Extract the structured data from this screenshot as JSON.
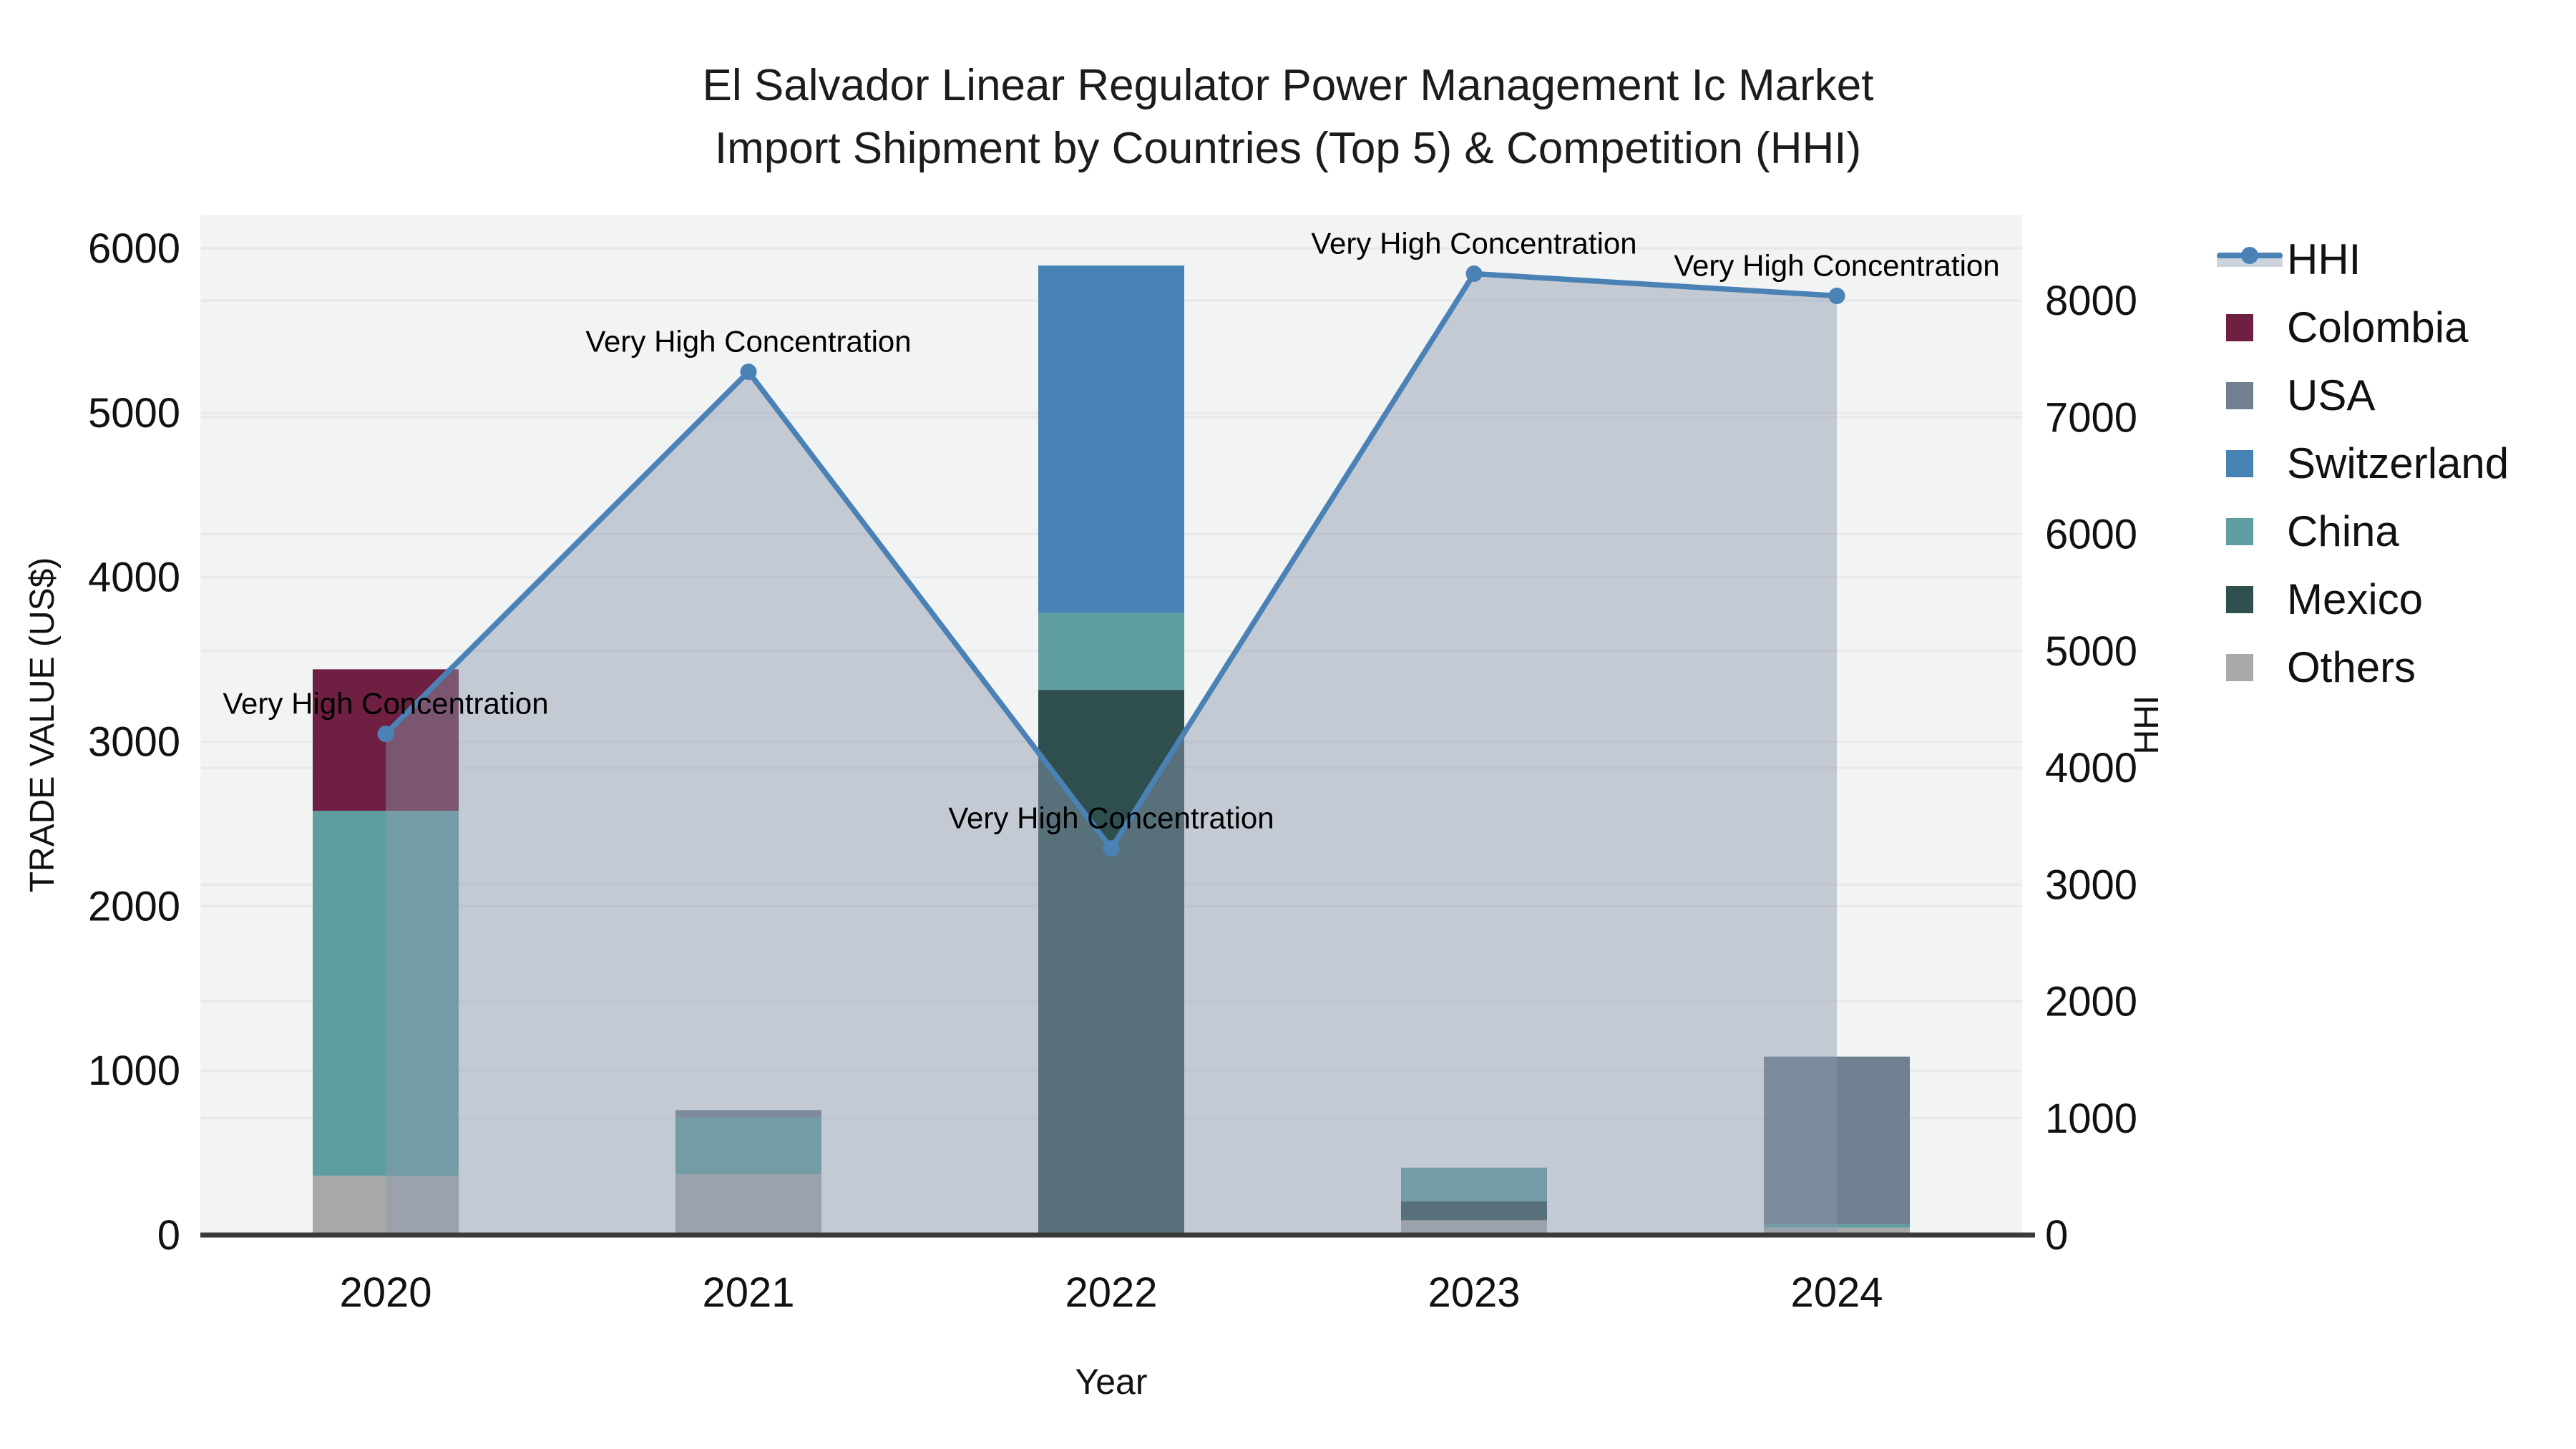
{
  "title": {
    "line1": "El Salvador Linear Regulator Power Management Ic Market",
    "line2": "Import Shipment by Countries (Top 5) & Competition (HHI)"
  },
  "axes": {
    "xlabel": "Year",
    "ylabel_left": "TRADE VALUE (US$)",
    "ylabel_right": "HHI"
  },
  "chart_data": {
    "type": "bar",
    "subtype": "stacked-bars-with-line-area",
    "categories": [
      "2020",
      "2021",
      "2022",
      "2023",
      "2024"
    ],
    "xlabel": "Year",
    "ylabel": "TRADE VALUE (US$)",
    "ylabel_right": "HHI",
    "ylim_left": [
      0,
      6200
    ],
    "ylim_right": [
      0,
      8740
    ],
    "yticks_left": [
      0,
      1000,
      2000,
      3000,
      4000,
      5000,
      6000
    ],
    "yticks_right": [
      0,
      1000,
      2000,
      3000,
      4000,
      5000,
      6000,
      7000,
      8000
    ],
    "grid": true,
    "plot_bg": "#f2f3f3",
    "grid_color": "#e7e8ea",
    "axis_line_color": "#3a3a3a",
    "legend_position": "right",
    "stack_order_bottom_to_top": [
      "Others",
      "Mexico",
      "China",
      "Switzerland",
      "USA",
      "Colombia"
    ],
    "series": [
      {
        "name": "Colombia",
        "color": "#6e1f42",
        "values": [
          860,
          0,
          0,
          0,
          0
        ]
      },
      {
        "name": "USA",
        "color": "#708090",
        "values": [
          0,
          45,
          0,
          0,
          1020
        ]
      },
      {
        "name": "Switzerland",
        "color": "#4682b4",
        "values": [
          0,
          0,
          2110,
          0,
          0
        ]
      },
      {
        "name": "China",
        "color": "#5f9ea0",
        "values": [
          2220,
          345,
          470,
          205,
          20
        ]
      },
      {
        "name": "Mexico",
        "color": "#2f4f4f",
        "values": [
          0,
          0,
          3315,
          115,
          0
        ]
      },
      {
        "name": "Others",
        "color": "#a9a9a9",
        "values": [
          360,
          370,
          0,
          90,
          45
        ]
      }
    ],
    "line_series": {
      "name": "HHI",
      "axis": "right",
      "color": "#4a82b6",
      "marker": "circle",
      "area_fill": "rgba(140,152,176,0.45)",
      "values": [
        4290,
        7390,
        3310,
        8230,
        8040
      ]
    },
    "annotations": [
      {
        "category": "2020",
        "text": "Very High Concentration"
      },
      {
        "category": "2021",
        "text": "Very High Concentration"
      },
      {
        "category": "2022",
        "text": "Very High Concentration"
      },
      {
        "category": "2023",
        "text": "Very High Concentration"
      },
      {
        "category": "2024",
        "text": "Very High Concentration"
      }
    ]
  },
  "legend": {
    "items": [
      {
        "label": "HHI",
        "type": "line",
        "color": "#4a82b6",
        "band": "#ccd3dc"
      },
      {
        "label": "Colombia",
        "type": "patch",
        "color": "#6e1f42"
      },
      {
        "label": "USA",
        "type": "patch",
        "color": "#708090"
      },
      {
        "label": "Switzerland",
        "type": "patch",
        "color": "#4682b4"
      },
      {
        "label": "China",
        "type": "patch",
        "color": "#5f9ea0"
      },
      {
        "label": "Mexico",
        "type": "patch",
        "color": "#2f4f4f"
      },
      {
        "label": "Others",
        "type": "patch",
        "color": "#a9a9a9"
      }
    ]
  }
}
